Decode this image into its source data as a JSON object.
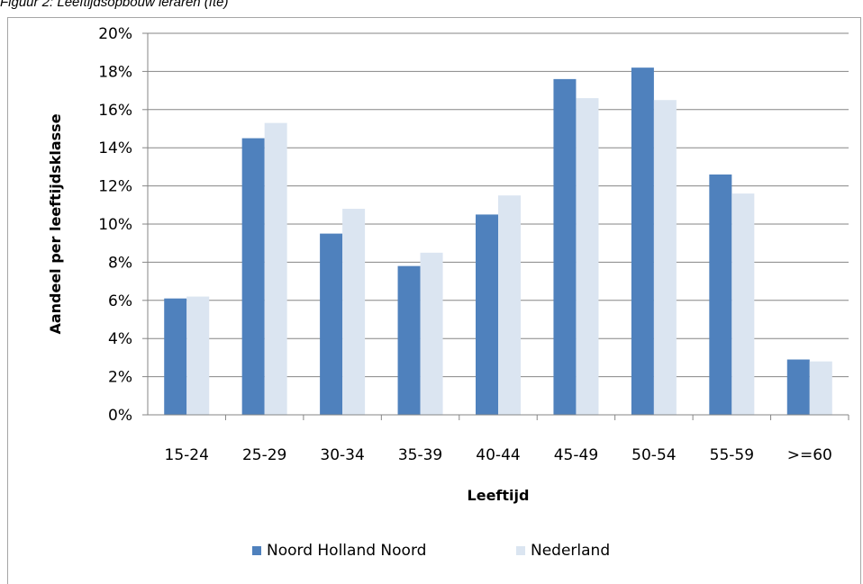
{
  "caption": "Figuur 2: Leeftijdsopbouw leraren (fte)",
  "chart_data": {
    "type": "bar",
    "categories": [
      "15-24",
      "25-29",
      "30-34",
      "35-39",
      "40-44",
      "45-49",
      "50-54",
      "55-59",
      ">=60"
    ],
    "series": [
      {
        "name": "Noord Holland Noord",
        "color": "#4f81bd",
        "values": [
          6.1,
          14.5,
          9.5,
          7.8,
          10.5,
          17.6,
          18.2,
          12.6,
          2.9
        ]
      },
      {
        "name": "Nederland",
        "color": "#dbe5f1",
        "values": [
          6.2,
          15.3,
          10.8,
          8.5,
          11.5,
          16.6,
          16.5,
          11.6,
          2.8
        ]
      }
    ],
    "xlabel": "Leeftijd",
    "ylabel": "Aandeel per leeftijdsklasse",
    "ylim": [
      0,
      20
    ],
    "yticks": [
      "0%",
      "2%",
      "4%",
      "6%",
      "8%",
      "10%",
      "12%",
      "14%",
      "16%",
      "18%",
      "20%"
    ],
    "grid": true,
    "legend_position": "bottom"
  }
}
